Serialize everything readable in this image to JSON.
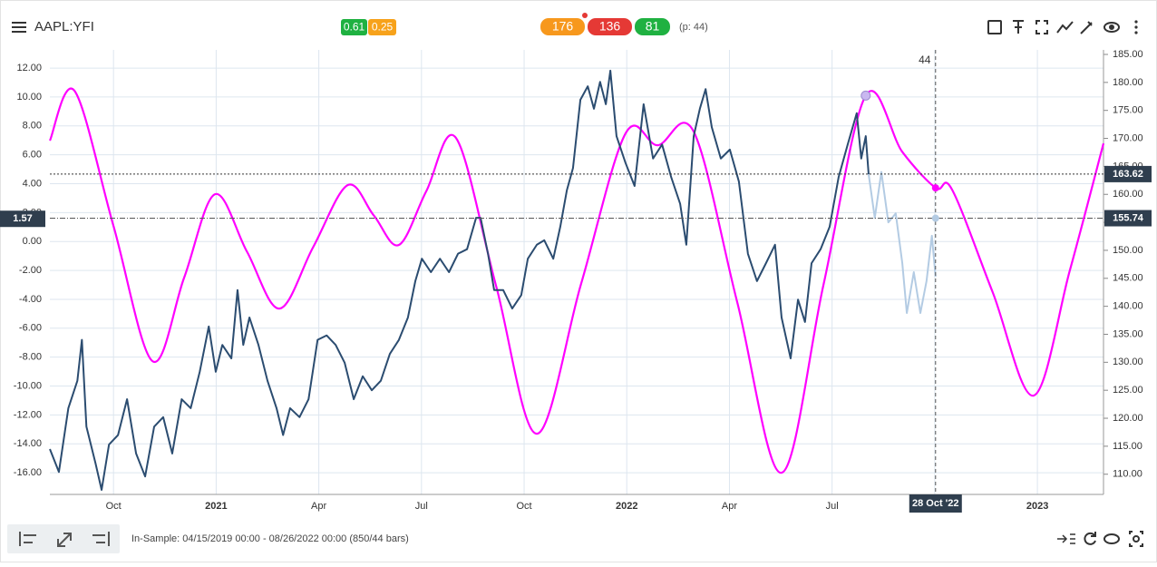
{
  "top_bar": {
    "symbol": "AAPL:YFI",
    "scores": [
      0.61,
      0.25
    ],
    "counts": [
      176,
      136,
      81
    ],
    "period": "(p: 44)"
  },
  "footer": {
    "info": "In-Sample: 04/15/2019 00:00 - 08/26/2022 00:00 (850/44 bars)"
  },
  "chart_data": {
    "type": "line",
    "xlim": [
      2020.595,
      2023.161
    ],
    "xticks": [
      {
        "value": 2020.75,
        "label": "Oct"
      },
      2021,
      {
        "value": 2021.25,
        "label": "Apr"
      },
      {
        "value": 2021.5,
        "label": "Jul"
      },
      {
        "value": 2021.75,
        "label": "Oct"
      },
      2022,
      {
        "value": 2022.25,
        "label": "Apr"
      },
      {
        "value": 2022.5,
        "label": "Jul"
      },
      {
        "value": 2022.75,
        "label": "Oct"
      },
      2023
    ],
    "ylim": [
      -17.5,
      13.26
    ],
    "yticks": [
      {
        "value": -16,
        "label": "-16.00"
      },
      {
        "value": -14,
        "label": "-14.00"
      },
      {
        "value": -12,
        "label": "-12.00"
      },
      {
        "value": -10,
        "label": "-10.00"
      },
      {
        "value": -8,
        "label": "-8.00"
      },
      {
        "value": -6,
        "label": "-6.00"
      },
      {
        "value": -4,
        "label": "-4.00"
      },
      {
        "value": -2,
        "label": "-2.00"
      },
      {
        "value": 0,
        "label": "0.00"
      },
      {
        "value": 2,
        "label": "2.00"
      },
      {
        "value": 4,
        "label": "4.00"
      },
      {
        "value": 6,
        "label": "6.00"
      },
      {
        "value": 8,
        "label": "8.00"
      },
      {
        "value": 10,
        "label": "10.00"
      },
      {
        "value": 12,
        "label": "12.00"
      }
    ],
    "y2lim": [
      106.39,
      185.81
    ],
    "y2ticks": [
      {
        "value": 110,
        "label": "110.00"
      },
      {
        "value": 115,
        "label": "115.00"
      },
      {
        "value": 120,
        "label": "120.00"
      },
      {
        "value": 125,
        "label": "125.00"
      },
      {
        "value": 130,
        "label": "130.00"
      },
      {
        "value": 135,
        "label": "135.00"
      },
      {
        "value": 140,
        "label": "140.00"
      },
      {
        "value": 145,
        "label": "145.00"
      },
      {
        "value": 150,
        "label": "150.00"
      },
      {
        "value": 155,
        "label": "155.00"
      },
      {
        "value": 160,
        "label": "160.00"
      },
      {
        "value": 165,
        "label": "165.00"
      },
      {
        "value": 170,
        "label": "170.00"
      },
      {
        "value": 175,
        "label": "175.00"
      },
      {
        "value": 180,
        "label": "180.00"
      },
      {
        "value": 185,
        "label": "185.00"
      }
    ],
    "grid": true,
    "series": [
      {
        "color": "#ff00ff",
        "x": [
          2020.595,
          2020.655,
          2020.75,
          2020.845,
          2020.922,
          2020.997,
          2021.075,
          2021.154,
          2021.236,
          2021.32,
          2021.384,
          2021.445,
          2021.512,
          2021.584,
          2021.682,
          2021.781,
          2021.889,
          2021.997,
          2022.075,
          2022.163,
          2022.269,
          2022.377,
          2022.479,
          2022.582,
          2022.671,
          2022.752,
          2022.792,
          2022.891,
          2022.991,
          2023.079,
          2023.161
        ],
        "values": [
          6.98,
          10.43,
          1.07,
          -8.28,
          -2.5,
          3.27,
          -0.7,
          -4.64,
          -0.4,
          3.9,
          1.8,
          -0.24,
          3.5,
          7.17,
          -3.1,
          -13.3,
          -2.9,
          7.48,
          6.66,
          7.6,
          -4.2,
          -16.0,
          -3.0,
          10.1,
          6.2,
          3.71,
          3.6,
          -3.5,
          -10.66,
          -2.0,
          6.79
        ]
      },
      {
        "color": "#2b4c70",
        "axis": "y2",
        "x": [
          2020.595,
          2020.617,
          2020.64,
          2020.662,
          2020.673,
          2020.684,
          2020.706,
          2020.721,
          2020.739,
          2020.761,
          2020.783,
          2020.805,
          2020.827,
          2020.849,
          2020.871,
          2020.893,
          2020.916,
          2020.938,
          2020.96,
          2020.982,
          2020.999,
          2021.015,
          2021.037,
          2021.052,
          2021.066,
          2021.081,
          2021.103,
          2021.125,
          2021.147,
          2021.163,
          2021.18,
          2021.203,
          2021.225,
          2021.247,
          2021.269,
          2021.291,
          2021.313,
          2021.335,
          2021.357,
          2021.379,
          2021.401,
          2021.423,
          2021.445,
          2021.467,
          2021.485,
          2021.501,
          2021.523,
          2021.545,
          2021.567,
          2021.589,
          2021.611,
          2021.633,
          2021.644,
          2021.662,
          2021.677,
          2021.699,
          2021.721,
          2021.743,
          2021.759,
          2021.781,
          2021.799,
          2021.821,
          2021.838,
          2021.854,
          2021.869,
          2021.887,
          2021.905,
          2021.92,
          2021.935,
          2021.949,
          2021.96,
          2021.975,
          2021.997,
          2022.019,
          2022.041,
          2022.064,
          2022.086,
          2022.108,
          2022.13,
          2022.145,
          2022.163,
          2022.178,
          2022.192,
          2022.207,
          2022.229,
          2022.251,
          2022.273,
          2022.295,
          2022.317,
          2022.339,
          2022.361,
          2022.377,
          2022.399,
          2022.417,
          2022.434,
          2022.45,
          2022.472,
          2022.494,
          2022.516,
          2022.538,
          2022.56,
          2022.571,
          2022.582,
          2022.589
        ],
        "values": [
          114.5,
          110.4,
          121.8,
          126.7,
          134,
          118.5,
          112,
          107.2,
          115.3,
          117,
          123.4,
          113.7,
          109.6,
          118.5,
          120.2,
          113.7,
          123.4,
          121.8,
          128.3,
          136.4,
          128.3,
          133.1,
          130.7,
          142.9,
          133.1,
          138,
          133.1,
          126.7,
          121.8,
          117,
          121.8,
          120.2,
          123.4,
          134,
          134.8,
          133.1,
          129.9,
          123.4,
          127.5,
          125,
          126.7,
          131.5,
          134,
          138,
          144.5,
          148.5,
          146.1,
          148.5,
          146.1,
          149.4,
          150.2,
          155.8,
          155.8,
          149.4,
          142.9,
          142.9,
          139.6,
          142,
          148.5,
          151,
          151.8,
          148.5,
          154.2,
          160.7,
          164.7,
          176.9,
          179.3,
          175.3,
          180.1,
          176.1,
          182.1,
          170.4,
          165.6,
          161.5,
          176.1,
          166.4,
          168.9,
          163.1,
          158.3,
          151,
          170.4,
          175.3,
          178.8,
          172,
          166.4,
          168,
          162.3,
          149.4,
          144.5,
          147.7,
          151,
          138,
          130.7,
          141.2,
          137.2,
          147.7,
          150.2,
          154.2,
          163.1,
          168.9,
          174.5,
          166.4,
          170.4,
          163.6
        ]
      },
      {
        "color": "#b3cbe3",
        "axis": "y2",
        "x": [
          2022.589,
          2022.604,
          2022.62,
          2022.637,
          2022.655,
          2022.671,
          2022.682,
          2022.699,
          2022.715,
          2022.73,
          2022.743,
          2022.752
        ],
        "values": [
          163.6,
          155.8,
          164,
          155,
          156.6,
          147.7,
          138.8,
          146.1,
          138.8,
          144.5,
          152.6,
          145.3
        ]
      }
    ],
    "last_price": 163.62,
    "crosshair": {
      "x": 2022.752,
      "x_label": "28 Oct '22",
      "bar": 44,
      "y": 1.57,
      "y2": 155.74,
      "y_marker": 3.71
    }
  }
}
